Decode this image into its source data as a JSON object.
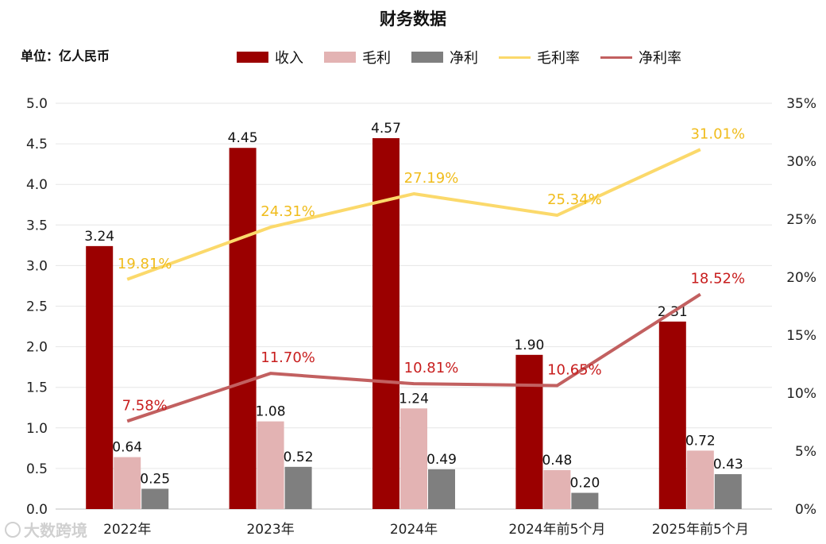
{
  "title": "财务数据",
  "unit_label": "单位：亿人民币",
  "watermark": "大数跨境",
  "colors": {
    "revenue": "#9b0000",
    "gross_profit": "#e3b3b3",
    "net_profit": "#7f7f7f",
    "gross_margin": "#fbd96b",
    "net_margin": "#c26060",
    "gross_margin_label": "#f0bc1c",
    "net_margin_label": "#c81e1e"
  },
  "chart_data": {
    "type": "bar",
    "title": "财务数据",
    "categories": [
      "2022年",
      "2023年",
      "2024年",
      "2024年前5个月",
      "2025年前5个月"
    ],
    "series": [
      {
        "name": "收入",
        "type": "bar",
        "axis": "left",
        "values": [
          3.24,
          4.45,
          4.57,
          1.9,
          2.31
        ],
        "labels": [
          "3.24",
          "4.45",
          "4.57",
          "1.90",
          "2.31"
        ]
      },
      {
        "name": "毛利",
        "type": "bar",
        "axis": "left",
        "values": [
          0.64,
          1.08,
          1.24,
          0.48,
          0.72
        ],
        "labels": [
          "0.64",
          "1.08",
          "1.24",
          "0.48",
          "0.72"
        ]
      },
      {
        "name": "净利",
        "type": "bar",
        "axis": "left",
        "values": [
          0.25,
          0.52,
          0.49,
          0.2,
          0.43
        ],
        "labels": [
          "0.25",
          "0.52",
          "0.49",
          "0.20",
          "0.43"
        ]
      },
      {
        "name": "毛利率",
        "type": "line",
        "axis": "right",
        "values": [
          19.81,
          24.31,
          27.19,
          25.34,
          31.01
        ],
        "labels": [
          "19.81%",
          "24.31%",
          "27.19%",
          "25.34%",
          "31.01%"
        ]
      },
      {
        "name": "净利率",
        "type": "line",
        "axis": "right",
        "values": [
          7.58,
          11.7,
          10.81,
          10.65,
          18.52
        ],
        "labels": [
          "7.58%",
          "11.70%",
          "10.81%",
          "10.65%",
          "18.52%"
        ]
      }
    ],
    "ylim": [
      0,
      5.0
    ],
    "y_ticks": [
      "0.0",
      "0.5",
      "1.0",
      "1.5",
      "2.0",
      "2.5",
      "3.0",
      "3.5",
      "4.0",
      "4.5",
      "5.0"
    ],
    "y2lim": [
      0,
      35
    ],
    "y2_ticks": [
      "0%",
      "5%",
      "10%",
      "15%",
      "20%",
      "25%",
      "30%",
      "35%"
    ],
    "xlabel": "",
    "ylabel": "",
    "grid": true,
    "legend": "top-center"
  }
}
